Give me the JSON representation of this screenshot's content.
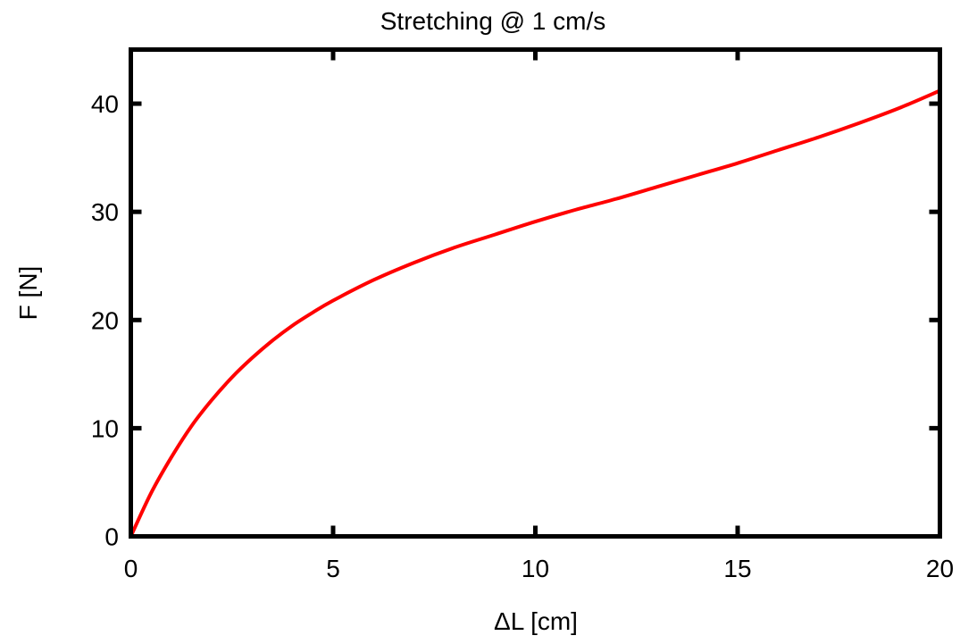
{
  "chart_data": {
    "type": "line",
    "title": "Stretching @ 1 cm/s",
    "xlabel": "ΔL [cm]",
    "ylabel": "F [N]",
    "xlim": [
      0,
      20
    ],
    "ylim": [
      0,
      45
    ],
    "x_ticks": [
      0,
      5,
      10,
      15,
      20
    ],
    "y_ticks": [
      0,
      10,
      20,
      30,
      40
    ],
    "x_tick_labels": [
      "0",
      "5",
      "10",
      "15",
      "20"
    ],
    "y_tick_labels": [
      "0",
      "10",
      "20",
      "30",
      "40"
    ],
    "grid": false,
    "series": [
      {
        "color": "#ff0000",
        "x": [
          0,
          0.5,
          1,
          1.5,
          2,
          2.5,
          3,
          3.5,
          4,
          4.5,
          5,
          6,
          7,
          8,
          9,
          10,
          11,
          12,
          13,
          14,
          15,
          16,
          17,
          18,
          19,
          20
        ],
        "y": [
          0,
          4.0,
          7.3,
          10.2,
          12.6,
          14.7,
          16.5,
          18.1,
          19.5,
          20.7,
          21.8,
          23.7,
          25.3,
          26.7,
          27.9,
          29.1,
          30.2,
          31.2,
          32.3,
          33.4,
          34.5,
          35.7,
          36.9,
          38.2,
          39.6,
          41.2
        ]
      }
    ]
  }
}
